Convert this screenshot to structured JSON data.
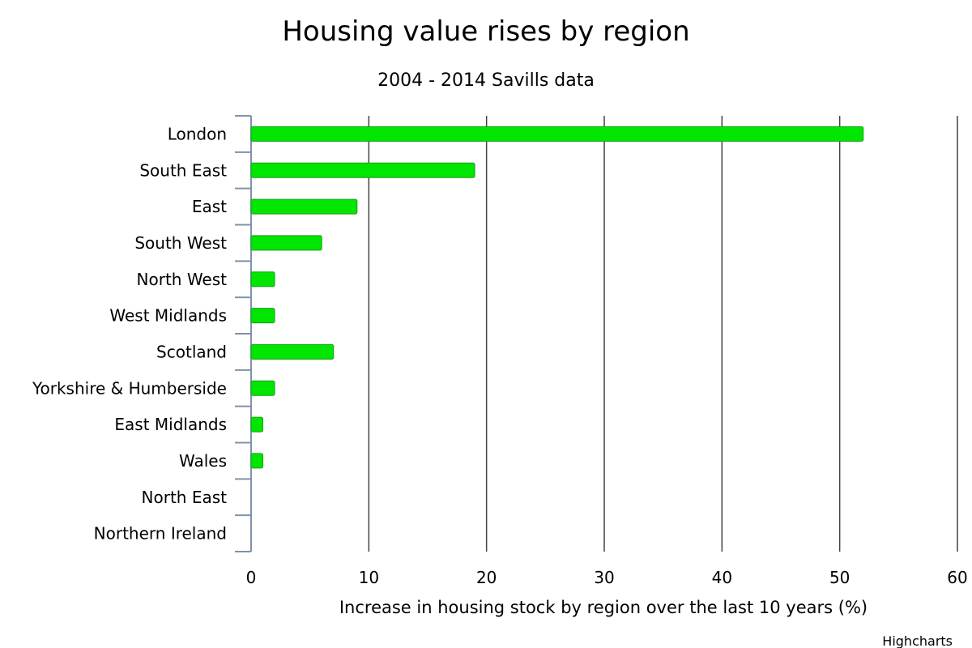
{
  "credit": "Highcharts",
  "chart_data": {
    "type": "bar",
    "orientation": "horizontal",
    "title": "Housing value rises by region",
    "subtitle": "2004 - 2014 Savills data",
    "xlabel": "Increase in housing stock by region over the last 10 years (%)",
    "categories": [
      "London",
      "South East",
      "East",
      "South West",
      "North West",
      "West Midlands",
      "Scotland",
      "Yorkshire & Humberside",
      "East Midlands",
      "Wales",
      "North East",
      "Northern Ireland"
    ],
    "values": [
      52,
      19,
      9,
      6,
      2,
      2,
      7,
      2,
      1,
      1,
      0,
      0
    ],
    "xlim": [
      0,
      60
    ],
    "ticks": [
      "0",
      "10",
      "20",
      "30",
      "40",
      "50",
      "60"
    ],
    "grid": true,
    "legend": "none",
    "bar_color": "#00e600"
  }
}
